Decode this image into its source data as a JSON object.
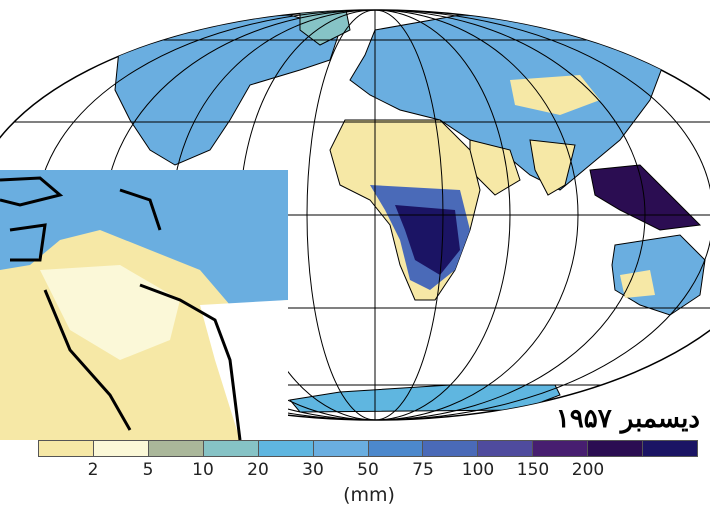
{
  "map": {
    "date_label": "دیسمبر ۱۹۵۷",
    "unit_label": "(mm)",
    "legend": {
      "colors": [
        "#f6e8a6",
        "#fbf8d8",
        "#aab79a",
        "#86c3c6",
        "#5fb6e0",
        "#6aaee0",
        "#4c88cc",
        "#4a6ab8",
        "#4f4b9e",
        "#471e70",
        "#2b0d52",
        "#1b1464"
      ],
      "tick_labels": [
        "2",
        "5",
        "10",
        "20",
        "30",
        "50",
        "75",
        "100",
        "150",
        "200"
      ]
    },
    "colors": {
      "desert": "#f6e8a6",
      "ocean": "#ffffff",
      "wet": "#1b1464",
      "mid": "#5fb6e0"
    }
  }
}
